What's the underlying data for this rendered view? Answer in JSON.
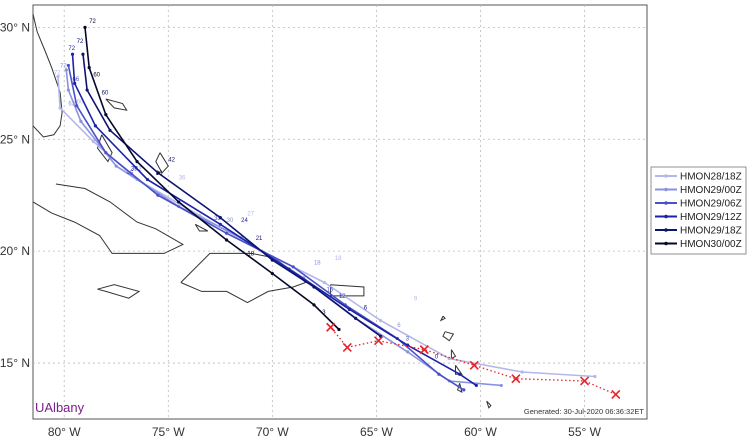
{
  "map": {
    "lon_range": [
      -81.5,
      -52
    ],
    "lat_range": [
      12.5,
      31
    ],
    "lon_ticks": [
      {
        "value": -80,
        "label": "80° W"
      },
      {
        "value": -75,
        "label": "75° W"
      },
      {
        "value": -70,
        "label": "70° W"
      },
      {
        "value": -65,
        "label": "65° W"
      },
      {
        "value": -60,
        "label": "60° W"
      },
      {
        "value": -55,
        "label": "55° W"
      }
    ],
    "lat_ticks": [
      {
        "value": 30,
        "label": "30° N"
      },
      {
        "value": 25,
        "label": "25° N"
      },
      {
        "value": 20,
        "label": "20° N"
      },
      {
        "value": 15,
        "label": "15° N"
      }
    ],
    "grid": true,
    "brand": "UAlbany",
    "footer": "Generated: 30-Jul-2020 06:36:32ET"
  },
  "observed_track": {
    "color": "#e8232a",
    "points": [
      [
        -53.5,
        13.6
      ],
      [
        -55.0,
        14.2
      ],
      [
        -58.3,
        14.3
      ],
      [
        -60.3,
        14.9
      ],
      [
        -62.7,
        15.6
      ],
      [
        -64.9,
        16.0
      ],
      [
        -66.4,
        15.7
      ],
      [
        -67.2,
        16.6
      ]
    ]
  },
  "legend": {
    "position": "right",
    "entries": [
      {
        "label": "HMON28/18Z",
        "color": "#b3b8ea"
      },
      {
        "label": "HMON29/00Z",
        "color": "#8a92e0"
      },
      {
        "label": "HMON29/06Z",
        "color": "#4a50c8"
      },
      {
        "label": "HMON29/12Z",
        "color": "#1c22a8"
      },
      {
        "label": "HMON29/18Z",
        "color": "#0d1470"
      },
      {
        "label": "HMON30/00Z",
        "color": "#05082a"
      }
    ]
  },
  "tracks": [
    {
      "name": "HMON28/18Z",
      "color": "#b3b8ea",
      "points": [
        [
          -54.5,
          14.4
        ],
        [
          -58.0,
          14.6
        ],
        [
          -61.5,
          15.2
        ],
        [
          -64.8,
          16.9
        ],
        [
          -67.5,
          18.6
        ],
        [
          -70.5,
          20.0
        ],
        [
          -73.5,
          21.6
        ],
        [
          -76.5,
          23.2
        ],
        [
          -78.6,
          24.9
        ],
        [
          -80.2,
          26.4
        ],
        [
          -80.3,
          27.8
        ]
      ],
      "labels": [
        {
          "lon": -63.2,
          "lat": 17.8,
          "text": "9"
        },
        {
          "lon": -67.0,
          "lat": 19.6,
          "text": "18"
        },
        {
          "lon": -71.2,
          "lat": 21.6,
          "text": "27"
        },
        {
          "lon": -74.5,
          "lat": 23.2,
          "text": "36"
        },
        {
          "lon": -79.4,
          "lat": 26.6,
          "text": "60"
        },
        {
          "lon": -80.5,
          "lat": 27.9,
          "text": "72"
        }
      ]
    },
    {
      "name": "HMON29/00Z",
      "color": "#8a92e0",
      "points": [
        [
          -59.0,
          14.0
        ],
        [
          -61.5,
          14.2
        ],
        [
          -63.5,
          15.5
        ],
        [
          -66.0,
          17.0
        ],
        [
          -68.5,
          18.8
        ],
        [
          -71.5,
          20.6
        ],
        [
          -74.5,
          22.0
        ],
        [
          -77.5,
          23.8
        ],
        [
          -79.2,
          25.8
        ],
        [
          -79.8,
          27.2
        ],
        [
          -79.9,
          28.1
        ]
      ],
      "labels": [
        {
          "lon": -64.0,
          "lat": 16.6,
          "text": "6"
        },
        {
          "lon": -68.0,
          "lat": 19.4,
          "text": "18"
        },
        {
          "lon": -72.2,
          "lat": 21.3,
          "text": "30"
        },
        {
          "lon": -76.6,
          "lat": 23.6,
          "text": "42"
        },
        {
          "lon": -79.8,
          "lat": 26.5,
          "text": "63"
        },
        {
          "lon": -80.2,
          "lat": 28.2,
          "text": "72"
        }
      ]
    },
    {
      "name": "HMON29/06Z",
      "color": "#4a50c8",
      "points": [
        [
          -60.8,
          13.8
        ],
        [
          -62.0,
          14.5
        ],
        [
          -64.0,
          16.1
        ],
        [
          -66.5,
          17.6
        ],
        [
          -69.0,
          19.3
        ],
        [
          -72.2,
          20.8
        ],
        [
          -75.5,
          22.5
        ],
        [
          -78.0,
          24.4
        ],
        [
          -79.4,
          26.5
        ],
        [
          -79.8,
          28.3
        ]
      ],
      "labels": [
        {
          "lon": -63.6,
          "lat": 16.0,
          "text": "3"
        },
        {
          "lon": -67.4,
          "lat": 18.2,
          "text": "15"
        },
        {
          "lon": -72.8,
          "lat": 21.4,
          "text": "33"
        },
        {
          "lon": -77.0,
          "lat": 23.4,
          "text": "45"
        },
        {
          "lon": -79.6,
          "lat": 27.6,
          "text": "66"
        }
      ]
    },
    {
      "name": "HMON29/12Z",
      "color": "#1c22a8",
      "points": [
        [
          -60.2,
          14.0
        ],
        [
          -61.0,
          14.5
        ],
        [
          -63.5,
          15.8
        ],
        [
          -66.3,
          17.4
        ],
        [
          -69.2,
          19.2
        ],
        [
          -72.5,
          21.2
        ],
        [
          -76.0,
          23.2
        ],
        [
          -78.5,
          25.6
        ],
        [
          -79.5,
          27.5
        ],
        [
          -79.6,
          28.8
        ]
      ],
      "labels": [
        {
          "lon": -62.2,
          "lat": 15.2,
          "text": "0"
        },
        {
          "lon": -66.8,
          "lat": 17.9,
          "text": "12"
        },
        {
          "lon": -71.5,
          "lat": 21.3,
          "text": "24"
        },
        {
          "lon": -76.8,
          "lat": 23.6,
          "text": "39"
        },
        {
          "lon": -79.8,
          "lat": 29.0,
          "text": "72"
        }
      ]
    },
    {
      "name": "HMON29/18Z",
      "color": "#0d1470",
      "points": [
        [
          -64.8,
          16.2
        ],
        [
          -66.0,
          17.0
        ],
        [
          -68.0,
          18.4
        ],
        [
          -70.0,
          19.6
        ],
        [
          -72.5,
          21.5
        ],
        [
          -75.5,
          23.5
        ],
        [
          -77.8,
          25.4
        ],
        [
          -78.9,
          27.2
        ],
        [
          -79.1,
          28.8
        ]
      ],
      "labels": [
        {
          "lon": -65.6,
          "lat": 17.4,
          "text": "6"
        },
        {
          "lon": -70.8,
          "lat": 20.5,
          "text": "21"
        },
        {
          "lon": -75.0,
          "lat": 24.0,
          "text": "42"
        },
        {
          "lon": -78.2,
          "lat": 27.0,
          "text": "60"
        },
        {
          "lon": -79.4,
          "lat": 29.3,
          "text": "72"
        }
      ]
    },
    {
      "name": "HMON30/00Z",
      "color": "#05082a",
      "points": [
        [
          -66.8,
          16.5
        ],
        [
          -68.0,
          17.6
        ],
        [
          -70.0,
          19.0
        ],
        [
          -72.2,
          20.5
        ],
        [
          -74.5,
          22.2
        ],
        [
          -76.5,
          24.0
        ],
        [
          -78.0,
          26.1
        ],
        [
          -78.8,
          28.2
        ],
        [
          -79.0,
          30.0
        ]
      ],
      "labels": [
        {
          "lon": -67.6,
          "lat": 17.2,
          "text": "3"
        },
        {
          "lon": -71.2,
          "lat": 19.8,
          "text": "18"
        },
        {
          "lon": -75.6,
          "lat": 23.4,
          "text": "36"
        },
        {
          "lon": -78.6,
          "lat": 27.8,
          "text": "60"
        },
        {
          "lon": -78.8,
          "lat": 30.2,
          "text": "72"
        }
      ]
    }
  ],
  "coastlines": [
    [
      [
        -81.5,
        30.6
      ],
      [
        -81.3,
        29.8
      ],
      [
        -80.9,
        28.9
      ],
      [
        -80.6,
        28.2
      ],
      [
        -80.2,
        27.1
      ],
      [
        -80.1,
        26.2
      ],
      [
        -80.2,
        25.6
      ],
      [
        -80.5,
        25.2
      ],
      [
        -81.0,
        25.1
      ],
      [
        -81.5,
        25.6
      ]
    ],
    [
      [
        -80.4,
        23.0
      ],
      [
        -79.0,
        22.8
      ],
      [
        -77.8,
        22.2
      ],
      [
        -76.5,
        21.3
      ],
      [
        -75.6,
        21.0
      ],
      [
        -74.3,
        20.3
      ],
      [
        -75.2,
        19.9
      ],
      [
        -76.5,
        19.9
      ],
      [
        -77.7,
        19.9
      ],
      [
        -78.3,
        20.7
      ],
      [
        -79.5,
        21.3
      ],
      [
        -80.6,
        21.7
      ],
      [
        -81.5,
        22.2
      ]
    ],
    [
      [
        -78.4,
        18.3
      ],
      [
        -77.6,
        18.5
      ],
      [
        -76.4,
        18.2
      ],
      [
        -76.9,
        17.9
      ],
      [
        -78.0,
        18.2
      ],
      [
        -78.4,
        18.3
      ]
    ],
    [
      [
        -74.4,
        18.6
      ],
      [
        -73.0,
        19.9
      ],
      [
        -72.0,
        19.9
      ],
      [
        -71.0,
        19.9
      ],
      [
        -69.9,
        19.7
      ],
      [
        -68.9,
        19.0
      ],
      [
        -68.4,
        18.6
      ],
      [
        -69.0,
        18.4
      ],
      [
        -70.2,
        18.2
      ],
      [
        -71.2,
        17.7
      ],
      [
        -72.2,
        18.2
      ],
      [
        -73.4,
        18.2
      ],
      [
        -74.4,
        18.6
      ]
    ],
    [
      [
        -67.2,
        18.5
      ],
      [
        -65.6,
        18.4
      ],
      [
        -65.6,
        18.0
      ],
      [
        -67.2,
        18.0
      ],
      [
        -67.2,
        18.5
      ]
    ],
    [
      [
        -78.0,
        26.8
      ],
      [
        -77.2,
        26.6
      ],
      [
        -77.0,
        26.3
      ],
      [
        -77.6,
        26.4
      ],
      [
        -78.0,
        26.8
      ]
    ],
    [
      [
        -78.2,
        25.2
      ],
      [
        -77.7,
        24.4
      ],
      [
        -77.9,
        24.0
      ],
      [
        -78.4,
        24.6
      ],
      [
        -78.2,
        25.2
      ]
    ],
    [
      [
        -75.4,
        24.4
      ],
      [
        -75.0,
        23.8
      ],
      [
        -75.3,
        23.5
      ],
      [
        -75.6,
        24.0
      ],
      [
        -75.4,
        24.4
      ]
    ],
    [
      [
        -73.7,
        21.2
      ],
      [
        -73.1,
        20.9
      ],
      [
        -73.5,
        20.9
      ],
      [
        -73.7,
        21.2
      ]
    ],
    [
      [
        -61.8,
        17.1
      ],
      [
        -61.7,
        17.0
      ],
      [
        -61.9,
        16.9
      ],
      [
        -61.8,
        17.1
      ]
    ],
    [
      [
        -61.7,
        16.4
      ],
      [
        -61.3,
        16.3
      ],
      [
        -61.5,
        16.0
      ],
      [
        -61.8,
        16.2
      ],
      [
        -61.7,
        16.4
      ]
    ],
    [
      [
        -61.4,
        15.6
      ],
      [
        -61.2,
        15.3
      ],
      [
        -61.4,
        15.2
      ],
      [
        -61.4,
        15.6
      ]
    ],
    [
      [
        -61.2,
        14.9
      ],
      [
        -60.9,
        14.5
      ],
      [
        -61.2,
        14.5
      ],
      [
        -61.2,
        14.9
      ]
    ],
    [
      [
        -61.0,
        14.1
      ],
      [
        -60.9,
        13.7
      ],
      [
        -61.1,
        13.8
      ],
      [
        -61.0,
        14.1
      ]
    ],
    [
      [
        -59.7,
        13.3
      ],
      [
        -59.5,
        13.1
      ],
      [
        -59.6,
        13.0
      ],
      [
        -59.7,
        13.3
      ]
    ]
  ]
}
